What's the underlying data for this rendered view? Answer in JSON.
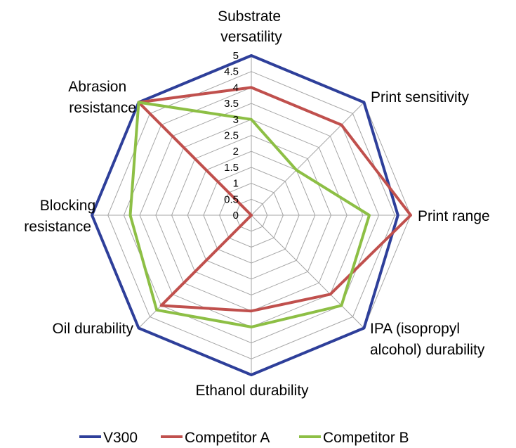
{
  "chart_data": {
    "type": "radar",
    "axes": [
      "Substrate versatility",
      "Print sensitivity",
      "Print range",
      "IPA (isopropyl alcohol) durability",
      "Ethanol durability",
      "Oil durability",
      "Blocking resistance",
      "Abrasion resistance"
    ],
    "ticks": [
      "0",
      "0.5",
      "1",
      "1.5",
      "2",
      "2.5",
      "3",
      "3.5",
      "4",
      "4.5",
      "5"
    ],
    "range": [
      0,
      5
    ],
    "grid": true,
    "legend_position": "bottom",
    "series": [
      {
        "name": "V300",
        "color": "#2E3F9A",
        "values": [
          5,
          5,
          4.6,
          5,
          5,
          5,
          5,
          5
        ]
      },
      {
        "name": "Competitor A",
        "color": "#C0504D",
        "values": [
          4,
          4,
          5,
          3.5,
          3,
          4,
          0,
          5
        ]
      },
      {
        "name": "Competitor B",
        "color": "#8DBF45",
        "values": [
          3,
          2,
          3.7,
          4,
          3.5,
          4.2,
          3.8,
          5
        ]
      }
    ]
  }
}
